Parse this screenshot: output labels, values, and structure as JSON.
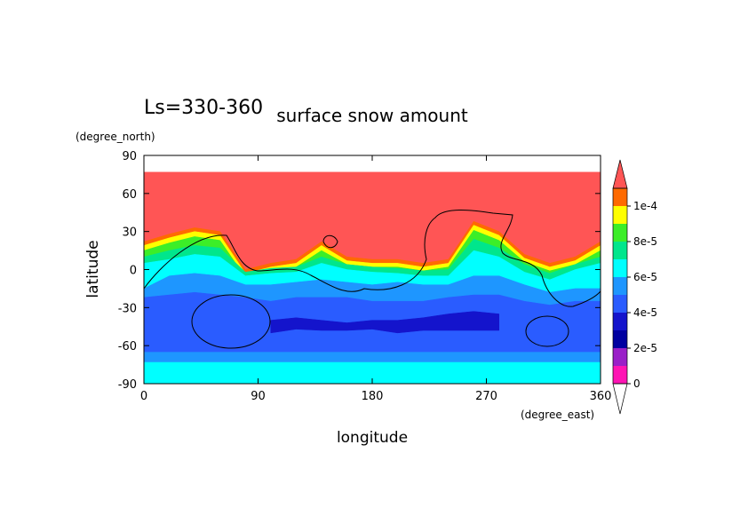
{
  "chart_data": {
    "type": "contour",
    "title": "surface snow amount",
    "subtitle": "Ls=330-360",
    "x_label": "longitude",
    "x_unit": "(degree_east)",
    "y_label": "latitude",
    "y_unit": "(degree_north)",
    "xlim": [
      0,
      360
    ],
    "xticks": [
      0,
      90,
      180,
      270,
      360
    ],
    "ylim": [
      -90,
      90
    ],
    "yticks": [
      90,
      60,
      30,
      0,
      -30,
      -60,
      -90
    ],
    "levels": [
      0,
      1e-05,
      2e-05,
      3e-05,
      4e-05,
      5e-05,
      6e-05,
      7e-05,
      8e-05,
      9e-05,
      0.0001,
      0.00011
    ],
    "colors": [
      "#ff14b4",
      "#9a1fc8",
      "#0000a0",
      "#1414cc",
      "#2a5cff",
      "#1e96ff",
      "#00ffff",
      "#00e68c",
      "#3cee28",
      "#ffff00",
      "#ff6a00",
      "#ff5555"
    ],
    "colorbar_ticks": [
      0,
      {
        "value": 2e-05,
        "label": "2e-5"
      },
      {
        "value": 4e-05,
        "label": "4e-5"
      },
      {
        "value": 6e-05,
        "label": "6e-5"
      },
      {
        "value": 8e-05,
        "label": "8e-5"
      },
      {
        "value": 0.0001,
        "label": "1e-4"
      }
    ],
    "lon": [
      0,
      20,
      40,
      60,
      80,
      100,
      120,
      140,
      160,
      180,
      200,
      220,
      240,
      260,
      280,
      300,
      320,
      340,
      360
    ],
    "bands": [
      {
        "level": 11,
        "top": 77
      },
      {
        "level": 10,
        "top": [
          22,
          28,
          33,
          30,
          0,
          5,
          8,
          22,
          10,
          8,
          8,
          5,
          8,
          38,
          30,
          12,
          5,
          10,
          22
        ]
      },
      {
        "level": 9,
        "top": [
          19,
          25,
          30,
          27,
          -3,
          2,
          5,
          19,
          7,
          5,
          5,
          2,
          5,
          35,
          27,
          9,
          2,
          7,
          19
        ]
      },
      {
        "level": 8,
        "top": [
          15,
          21,
          26,
          23,
          -6,
          -1,
          2,
          15,
          4,
          2,
          2,
          -1,
          2,
          31,
          23,
          6,
          -1,
          4,
          15
        ]
      },
      {
        "level": 7,
        "top": [
          10,
          15,
          19,
          17,
          -2,
          1,
          2,
          10,
          4,
          2,
          1,
          -1,
          0,
          24,
          17,
          4,
          -3,
          4,
          10
        ]
      },
      {
        "level": 6,
        "top": [
          5,
          8,
          12,
          10,
          -5,
          -3,
          -2,
          5,
          0,
          -2,
          -3,
          -5,
          -5,
          15,
          10,
          -2,
          -8,
          0,
          5
        ]
      },
      {
        "level": 5,
        "top": [
          -15,
          -5,
          -3,
          -5,
          -12,
          -12,
          -10,
          -8,
          -10,
          -12,
          -10,
          -12,
          -12,
          -5,
          -5,
          -12,
          -18,
          -15,
          -15
        ]
      },
      {
        "level": 4,
        "top": [
          -22,
          -20,
          -18,
          -20,
          -22,
          -25,
          -22,
          -22,
          -22,
          -25,
          -25,
          -25,
          -22,
          -20,
          -20,
          -25,
          -28,
          -25,
          -25
        ]
      },
      {
        "level": 3,
        "top": [
          null,
          null,
          null,
          null,
          null,
          -40,
          -38,
          -40,
          -42,
          -40,
          -40,
          -38,
          -35,
          -33,
          -35,
          null,
          null,
          null,
          null
        ],
        "bottom": [
          null,
          null,
          null,
          null,
          null,
          -50,
          -47,
          -48,
          -48,
          -47,
          -50,
          -48,
          -48,
          -48,
          -48,
          null,
          null,
          null,
          null
        ]
      },
      {
        "level": 5,
        "top": -65
      },
      {
        "level": 6,
        "top": -73
      }
    ]
  }
}
